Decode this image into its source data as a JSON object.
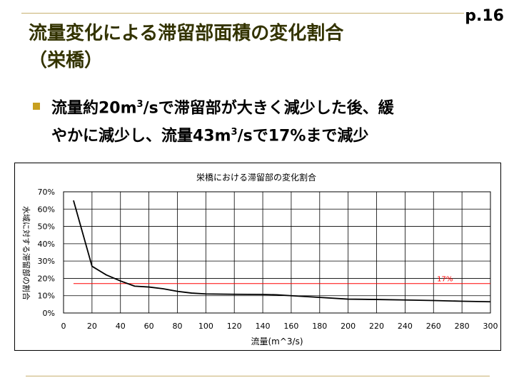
{
  "page_number": "p.16",
  "title_lines": [
    "流量変化による滞留部面積の変化割合",
    "（栄橋）"
  ],
  "bullet": {
    "line1_pre": "流量約20m",
    "line1_sup": "3",
    "line1_post": "/sで滞留部が大きく減少した後、緩",
    "line2_pre": "やかに減少し、流量43m",
    "line2_sup": "3",
    "line2_post": "/sで17%まで減少"
  },
  "colors": {
    "title": "#333300",
    "bullet_marker": "#c8a020",
    "rule": "#c8b070",
    "series_line": "#000000",
    "reference_line": "#ff0000"
  },
  "chart_data": {
    "type": "line",
    "title": "栄橋における滞留部の変化割合",
    "xlabel": "流量(m^3/s)",
    "ylabel": "水域に対する滞留部の割合",
    "x_ticks": [
      "0",
      "20",
      "40",
      "60",
      "80",
      "100",
      "120",
      "140",
      "160",
      "180",
      "200",
      "220",
      "240",
      "260",
      "280",
      "300"
    ],
    "y_ticks": [
      "0%",
      "10%",
      "20%",
      "30%",
      "40%",
      "50%",
      "60%",
      "70%"
    ],
    "xlim": [
      0,
      300
    ],
    "ylim": [
      0,
      0.7
    ],
    "grid": true,
    "legend": "none",
    "series": [
      {
        "x": [
          7,
          20,
          30,
          40,
          50,
          60,
          70,
          80,
          90,
          100,
          120,
          140,
          150,
          160,
          180,
          200,
          220,
          240,
          260,
          280,
          300
        ],
        "y": [
          0.65,
          0.27,
          0.22,
          0.185,
          0.155,
          0.15,
          0.14,
          0.125,
          0.115,
          0.11,
          0.108,
          0.107,
          0.105,
          0.1,
          0.09,
          0.08,
          0.078,
          0.075,
          0.072,
          0.068,
          0.065
        ]
      }
    ],
    "reference_line": {
      "y": 0.17,
      "x_start": 7,
      "x_end": 300,
      "label": "17%"
    }
  }
}
